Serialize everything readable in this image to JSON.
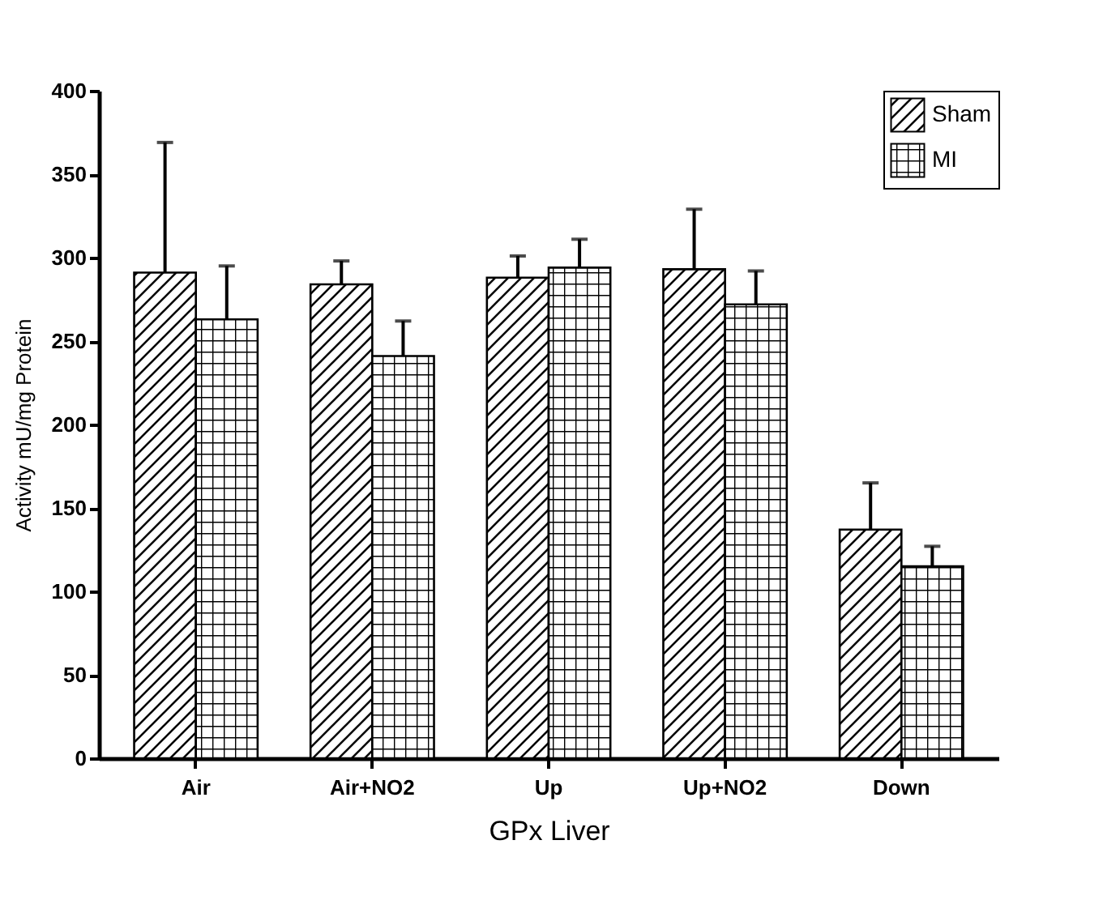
{
  "chart_data": {
    "type": "bar",
    "xlabel": "GPx Liver",
    "ylabel": "Activity mU/mg Protein",
    "categories": [
      "Air",
      "Air+NO2",
      "Up",
      "Up+NO2",
      "Down"
    ],
    "series": [
      {
        "name": "Sham",
        "color": "#000000",
        "values": [
          291,
          284,
          288,
          293,
          137
        ],
        "errors": [
          [
            291,
            369
          ],
          [
            284,
            298
          ],
          [
            288,
            301
          ],
          [
            293,
            329
          ],
          [
            137,
            165
          ]
        ]
      },
      {
        "name": "MI",
        "color": "#000000",
        "values": [
          263,
          241,
          294,
          272,
          115
        ],
        "errors": [
          [
            263,
            295
          ],
          [
            241,
            262
          ],
          [
            294,
            311
          ],
          [
            272,
            292
          ],
          [
            115,
            127
          ]
        ]
      }
    ],
    "ylim": [
      0,
      400
    ],
    "yticks": [
      0,
      50,
      100,
      150,
      200,
      250,
      300,
      350,
      400
    ],
    "grid": false,
    "legend": "top right"
  }
}
